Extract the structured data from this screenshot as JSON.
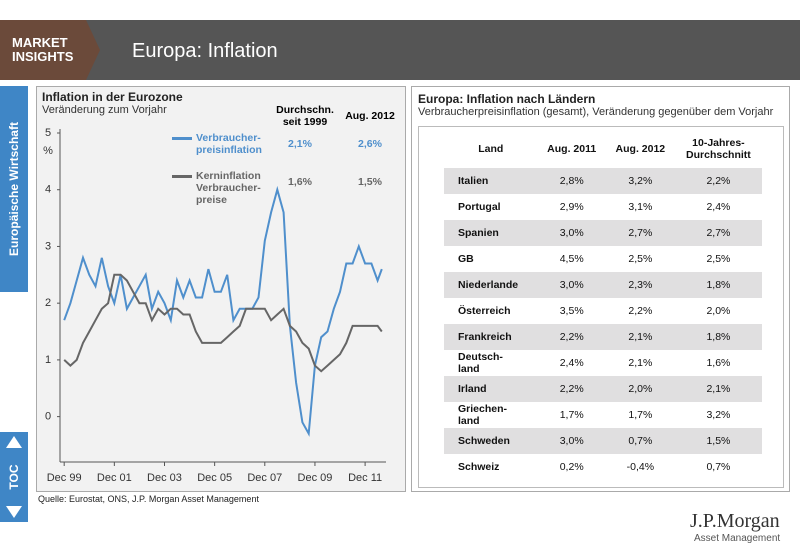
{
  "header": {
    "brand": "MARKET\nINSIGHTS",
    "title": "Europa: Inflation"
  },
  "sidebar": {
    "section": "Europäische Wirtschaft",
    "toc": "TOC"
  },
  "chart_data": {
    "type": "line",
    "title": "Inflation in der Eurozone",
    "subtitle": "Veränderung zum Vorjahr",
    "y_unit": "%",
    "x": [
      "1999-12",
      "2000-03",
      "2000-06",
      "2000-09",
      "2000-12",
      "2001-03",
      "2001-06",
      "2001-09",
      "2001-12",
      "2002-03",
      "2002-06",
      "2002-09",
      "2002-12",
      "2003-03",
      "2003-06",
      "2003-09",
      "2003-12",
      "2004-03",
      "2004-06",
      "2004-09",
      "2004-12",
      "2005-03",
      "2005-06",
      "2005-09",
      "2005-12",
      "2006-03",
      "2006-06",
      "2006-09",
      "2006-12",
      "2007-03",
      "2007-06",
      "2007-09",
      "2007-12",
      "2008-03",
      "2008-06",
      "2008-09",
      "2008-12",
      "2009-03",
      "2009-06",
      "2009-09",
      "2009-12",
      "2010-03",
      "2010-06",
      "2010-09",
      "2010-12",
      "2011-03",
      "2011-06",
      "2011-09",
      "2011-12",
      "2012-03",
      "2012-06",
      "2012-08"
    ],
    "series": [
      {
        "name": "Verbraucher-\npreisinflation",
        "color": "#4f8fcc",
        "values": [
          1.7,
          2.0,
          2.4,
          2.8,
          2.5,
          2.3,
          2.8,
          2.3,
          2.0,
          2.5,
          1.9,
          2.1,
          2.3,
          2.5,
          1.9,
          2.2,
          2.0,
          1.7,
          2.4,
          2.1,
          2.4,
          2.1,
          2.1,
          2.6,
          2.2,
          2.2,
          2.5,
          1.7,
          1.9,
          1.9,
          1.9,
          2.1,
          3.1,
          3.6,
          4.0,
          3.6,
          1.6,
          0.6,
          -0.1,
          -0.3,
          0.9,
          1.4,
          1.5,
          1.9,
          2.2,
          2.7,
          2.7,
          3.0,
          2.7,
          2.7,
          2.4,
          2.6
        ]
      },
      {
        "name": "Kerninflation Verbraucher-\npreise",
        "color": "#666666",
        "values": [
          1.0,
          0.9,
          1.0,
          1.3,
          1.5,
          1.7,
          1.9,
          2.0,
          2.5,
          2.5,
          2.4,
          2.2,
          2.0,
          2.0,
          1.7,
          1.9,
          1.8,
          1.9,
          1.9,
          1.8,
          1.8,
          1.5,
          1.3,
          1.3,
          1.3,
          1.3,
          1.4,
          1.5,
          1.6,
          1.9,
          1.9,
          1.9,
          1.9,
          1.7,
          1.8,
          1.9,
          1.6,
          1.5,
          1.3,
          1.2,
          0.9,
          0.8,
          0.9,
          1.0,
          1.1,
          1.3,
          1.6,
          1.6,
          1.6,
          1.6,
          1.6,
          1.5
        ]
      }
    ],
    "legend_stats": {
      "headers": [
        "Durchschn.\nseit 1999",
        "Aug. 2012"
      ],
      "rows": [
        [
          "2,1%",
          "2,6%"
        ],
        [
          "1,6%",
          "1,5%"
        ]
      ]
    },
    "xlim": [
      "1999-10",
      "2012-10"
    ],
    "xticks": [
      {
        "value": "1999-12",
        "label": "Dec 99"
      },
      {
        "value": "2001-12",
        "label": "Dec 01"
      },
      {
        "value": "2003-12",
        "label": "Dec 03"
      },
      {
        "value": "2005-12",
        "label": "Dec 05"
      },
      {
        "value": "2007-12",
        "label": "Dec 07"
      },
      {
        "value": "2009-12",
        "label": "Dec 09"
      },
      {
        "value": "2011-12",
        "label": "Dec 11"
      }
    ],
    "ylim": [
      -0.8,
      5
    ],
    "yticks": [
      0,
      1,
      2,
      3,
      4,
      5
    ],
    "grid": false
  },
  "source": "Quelle: Eurostat, ONS, J.P. Morgan Asset Management",
  "table": {
    "title": "Europa: Inflation nach Ländern",
    "subtitle": "Verbraucherpreisinflation (gesamt), Veränderung gegenüber dem Vorjahr",
    "header": [
      "Land",
      "Aug. 2011",
      "Aug. 2012",
      "10-Jahres-\nDurchschnitt"
    ],
    "rows": [
      [
        "Italien",
        "2,8%",
        "3,2%",
        "2,2%"
      ],
      [
        "Portugal",
        "2,9%",
        "3,1%",
        "2,4%"
      ],
      [
        "Spanien",
        "3,0%",
        "2,7%",
        "2,7%"
      ],
      [
        "GB",
        "4,5%",
        "2,5%",
        "2,5%"
      ],
      [
        "Niederlande",
        "3,0%",
        "2,3%",
        "1,8%"
      ],
      [
        "Österreich",
        "3,5%",
        "2,2%",
        "2,0%"
      ],
      [
        "Frankreich",
        "2,2%",
        "2,1%",
        "1,8%"
      ],
      [
        "Deutsch-\nland",
        "2,4%",
        "2,1%",
        "1,6%"
      ],
      [
        "Irland",
        "2,2%",
        "2,0%",
        "2,1%"
      ],
      [
        "Griechen-\nland",
        "1,7%",
        "1,7%",
        "3,2%"
      ],
      [
        "Schweden",
        "3,0%",
        "0,7%",
        "1,5%"
      ],
      [
        "Schweiz",
        "0,2%",
        "-0,4%",
        "0,7%"
      ]
    ]
  },
  "logo": {
    "name": "J.P.Morgan",
    "sub": "Asset Management"
  }
}
